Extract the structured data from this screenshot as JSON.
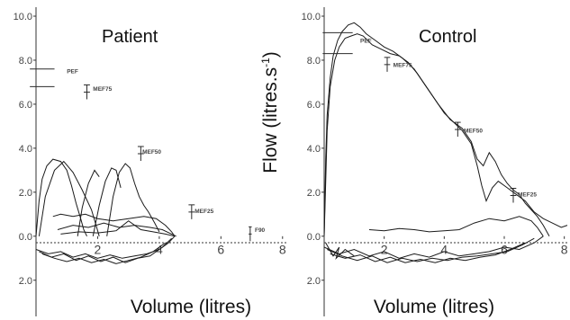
{
  "chart_data": [
    {
      "type": "line",
      "title": "Patient",
      "xlabel": "Volume (litres)",
      "ylabel": "",
      "xlim": [
        0,
        9
      ],
      "ylim": [
        -2.5,
        10
      ],
      "x_ticks": [
        "2",
        "4",
        "6",
        "8"
      ],
      "y_tick_labels": [
        {
          "value": 10,
          "label": "10.0"
        },
        {
          "value": 8,
          "label": "8.0"
        },
        {
          "value": 6,
          "label": "6.0"
        },
        {
          "value": 4,
          "label": "4.0"
        },
        {
          "value": 2,
          "label": "2.0"
        },
        {
          "value": 0,
          "label": "0.0"
        },
        {
          "value": -2,
          "label": "2.0"
        }
      ],
      "annotations": [
        {
          "label": "PEF",
          "x": 1.0,
          "y": 7.4
        },
        {
          "label": "MEF75",
          "x": 1.85,
          "y": 6.6
        },
        {
          "label": "MEF50",
          "x": 3.45,
          "y": 3.75
        },
        {
          "label": "MEF25",
          "x": 5.15,
          "y": 1.05
        },
        {
          "label": "F90",
          "x": 7.1,
          "y": 0.2
        }
      ],
      "predicted_bars": [
        {
          "x": 0.2,
          "y": 7.6,
          "half_width": 0.4
        },
        {
          "x": 0.2,
          "y": 6.8,
          "half_width": 0.4
        },
        {
          "x": 1.65,
          "y": 6.55,
          "half_width": 0.1
        },
        {
          "x": 3.4,
          "y": 3.75,
          "half_width": 0.1
        },
        {
          "x": 5.05,
          "y": 1.1,
          "half_width": 0.1
        },
        {
          "x": 6.95,
          "y": 0.1,
          "half_width": 0.05
        }
      ],
      "series": [
        {
          "x": [
            0,
            0.1,
            0.2,
            0.35,
            0.55,
            0.8,
            1.0,
            1.15,
            1.3,
            1.45,
            1.55,
            1.65
          ],
          "values": [
            0,
            1.6,
            2.6,
            3.2,
            3.5,
            3.4,
            3.0,
            2.3,
            1.5,
            0.8,
            0.3,
            0
          ]
        },
        {
          "x": [
            0.1,
            0.3,
            0.6,
            0.9,
            1.2,
            1.5,
            1.8,
            1.95,
            2.05
          ],
          "values": [
            0,
            1.8,
            3.0,
            3.4,
            2.9,
            2.1,
            1.2,
            0.5,
            0
          ]
        },
        {
          "x": [
            1.35,
            1.5,
            1.7,
            1.9,
            2.05
          ],
          "values": [
            0,
            1.3,
            2.4,
            3.0,
            2.7
          ]
        },
        {
          "x": [
            2.3,
            2.5,
            2.7,
            2.9,
            3.05,
            3.2,
            3.35,
            3.5,
            3.65,
            3.85,
            4.0
          ],
          "values": [
            0,
            1.8,
            2.9,
            3.3,
            3.1,
            2.4,
            1.8,
            1.4,
            1.1,
            0.6,
            0.2
          ]
        },
        {
          "x": [
            1.85,
            2.05,
            2.25,
            2.45,
            2.6,
            2.75
          ],
          "values": [
            0,
            1.4,
            2.5,
            3.1,
            3.0,
            2.2
          ]
        },
        {
          "x": [
            0.55,
            0.8,
            1.2,
            1.6,
            2.0,
            2.5,
            3.0,
            3.5,
            3.9,
            4.2,
            4.4,
            4.5
          ],
          "values": [
            0.9,
            1.0,
            0.9,
            1.0,
            0.8,
            0.7,
            0.8,
            0.9,
            0.8,
            0.5,
            0.2,
            0
          ]
        },
        {
          "x": [
            0.7,
            1.2,
            1.7,
            2.2,
            2.7,
            3.2,
            3.7,
            4.1,
            4.4,
            4.55
          ],
          "values": [
            0.3,
            0.5,
            0.4,
            0.6,
            0.4,
            0.5,
            0.4,
            0.3,
            0.1,
            0
          ]
        },
        {
          "x": [
            0.8,
            1.4,
            2.0,
            2.6,
            3.0,
            3.4,
            3.8,
            4.2,
            4.5
          ],
          "values": [
            0.1,
            0.2,
            0.15,
            0.25,
            0.7,
            0.3,
            0.2,
            0.1,
            0
          ]
        },
        {
          "x": [
            0,
            0.4,
            0.8,
            1.2,
            1.6,
            2.0,
            2.4,
            2.8,
            3.2,
            3.6,
            4.0,
            4.3,
            4.5
          ],
          "values": [
            -0.6,
            -0.8,
            -0.7,
            -0.95,
            -0.8,
            -1.0,
            -0.85,
            -1.0,
            -0.9,
            -0.8,
            -0.6,
            -0.3,
            0
          ]
        },
        {
          "x": [
            0.1,
            0.5,
            0.9,
            1.3,
            1.7,
            2.1,
            2.5,
            2.9,
            3.3,
            3.7,
            4.1,
            4.4
          ],
          "values": [
            -0.7,
            -0.95,
            -0.8,
            -1.1,
            -0.9,
            -1.15,
            -0.95,
            -1.2,
            -1.0,
            -0.9,
            -0.5,
            -0.1
          ]
        },
        {
          "x": [
            0.2,
            0.6,
            1.0,
            1.4,
            1.8,
            2.2,
            2.6,
            3.0,
            3.4,
            3.8,
            4.2
          ],
          "values": [
            -0.8,
            -1.0,
            -1.15,
            -1.0,
            -1.2,
            -1.05,
            -1.25,
            -1.1,
            -0.95,
            -0.7,
            -0.3
          ]
        }
      ]
    },
    {
      "type": "line",
      "title": "Control",
      "xlabel": "Volume (litres)",
      "ylabel": "Flow (litres.s",
      "ylabel_superscript": "-1",
      "ylabel_suffix": ")",
      "xlim": [
        0,
        9
      ],
      "ylim": [
        -2.5,
        10
      ],
      "x_ticks": [
        "2",
        "4",
        "6",
        "8"
      ],
      "y_tick_labels": [
        {
          "value": 10,
          "label": "10.0"
        },
        {
          "value": 8,
          "label": "8.0"
        },
        {
          "value": 6,
          "label": "6.0"
        },
        {
          "value": 4,
          "label": "4.0"
        },
        {
          "value": 2,
          "label": "2.0"
        },
        {
          "value": 0,
          "label": "0.0"
        },
        {
          "value": -2,
          "label": "2.0"
        }
      ],
      "annotations": [
        {
          "label": "PEF",
          "x": 1.2,
          "y": 8.8
        },
        {
          "label": "MEF75",
          "x": 2.3,
          "y": 7.7
        },
        {
          "label": "MEF50",
          "x": 4.65,
          "y": 4.7
        },
        {
          "label": "MEF25",
          "x": 6.45,
          "y": 1.8
        }
      ],
      "predicted_bars": [
        {
          "x": 0.45,
          "y": 9.25,
          "half_width": 0.5
        },
        {
          "x": 0.45,
          "y": 8.3,
          "half_width": 0.5
        },
        {
          "x": 2.1,
          "y": 7.8,
          "half_width": 0.1
        },
        {
          "x": 4.45,
          "y": 4.85,
          "half_width": 0.1
        },
        {
          "x": 6.3,
          "y": 1.85,
          "half_width": 0.1
        }
      ],
      "series": [
        {
          "x": [
            0,
            0.05,
            0.1,
            0.2,
            0.3,
            0.45,
            0.6,
            0.8,
            1.0,
            1.2,
            1.4,
            1.7,
            2.0,
            2.3,
            2.6,
            3.0,
            3.4,
            3.8,
            4.2,
            4.6,
            4.9,
            5.1,
            5.3,
            5.5,
            5.7,
            5.9,
            6.1,
            6.3,
            6.5,
            6.7,
            6.9,
            7.1,
            7.3,
            7.5
          ],
          "values": [
            0,
            3.5,
            5.5,
            7.2,
            8.2,
            8.9,
            9.3,
            9.6,
            9.7,
            9.5,
            9.2,
            8.9,
            8.6,
            8.4,
            8.1,
            7.6,
            6.8,
            6.0,
            5.3,
            4.9,
            4.3,
            3.5,
            3.2,
            3.8,
            3.4,
            2.8,
            2.4,
            2.1,
            1.9,
            1.5,
            1.2,
            0.9,
            0.5,
            0
          ]
        },
        {
          "x": [
            0,
            0.1,
            0.2,
            0.35,
            0.5,
            0.7,
            0.9,
            1.1,
            1.3,
            1.6,
            1.9,
            2.2,
            2.5,
            2.8,
            3.1,
            3.4,
            3.7,
            4.0,
            4.3,
            4.6,
            4.9,
            5.1,
            5.25,
            5.4,
            5.6,
            5.8,
            6.1,
            6.4,
            6.7,
            7.0,
            7.3,
            7.6,
            7.9,
            8.1
          ],
          "values": [
            0,
            4.8,
            6.8,
            8.0,
            8.6,
            9.0,
            9.1,
            9.2,
            9.1,
            8.7,
            8.5,
            8.3,
            8.2,
            7.9,
            7.4,
            6.8,
            6.2,
            5.6,
            5.2,
            4.8,
            4.2,
            3.2,
            2.3,
            1.6,
            2.2,
            2.5,
            2.2,
            1.9,
            1.6,
            1.1,
            0.8,
            0.6,
            0.4,
            0.5
          ]
        },
        {
          "x": [
            1.5,
            2.0,
            2.5,
            3.0,
            3.5,
            4.0,
            4.5,
            5.0,
            5.5,
            6.0,
            6.5,
            6.9,
            7.1,
            7.3
          ],
          "values": [
            0.3,
            0.25,
            0.35,
            0.3,
            0.2,
            0.25,
            0.3,
            0.6,
            0.8,
            0.7,
            0.9,
            0.7,
            0.4,
            0
          ]
        },
        {
          "x": [
            0,
            0.5,
            1.0,
            1.5,
            2.0,
            2.5,
            3.0,
            3.5,
            4.0,
            4.5,
            5.0,
            5.5,
            6.0,
            6.5,
            7.0,
            7.3
          ],
          "values": [
            -0.5,
            -0.8,
            -0.6,
            -0.9,
            -0.7,
            -1.0,
            -0.8,
            -0.95,
            -0.7,
            -0.9,
            -0.8,
            -0.7,
            -0.5,
            -0.6,
            -0.3,
            0
          ]
        },
        {
          "x": [
            0.1,
            0.6,
            1.1,
            1.6,
            2.1,
            2.6,
            3.1,
            3.6,
            4.1,
            4.6,
            5.1,
            5.6,
            6.1,
            6.6,
            7.0
          ],
          "values": [
            -0.6,
            -0.9,
            -1.1,
            -0.9,
            -1.2,
            -1.0,
            -1.15,
            -1.0,
            -1.1,
            -0.95,
            -0.9,
            -0.8,
            -0.7,
            -0.4,
            -0.1
          ]
        },
        {
          "x": [
            0.2,
            0.7,
            1.2,
            1.7,
            2.2,
            2.7,
            3.2,
            3.7,
            4.2,
            4.7,
            5.2,
            5.7,
            6.2,
            6.7
          ],
          "values": [
            -0.8,
            -1.0,
            -0.85,
            -1.15,
            -0.95,
            -1.2,
            -1.05,
            -1.2,
            -1.0,
            -1.1,
            -0.95,
            -0.85,
            -0.6,
            -0.3
          ]
        },
        {
          "x": [
            0.05,
            0.3,
            0.5,
            0.4,
            0.7,
            1.0
          ],
          "values": [
            -0.3,
            -0.9,
            -0.5,
            -1.0,
            -0.6,
            -0.9
          ]
        }
      ]
    }
  ]
}
